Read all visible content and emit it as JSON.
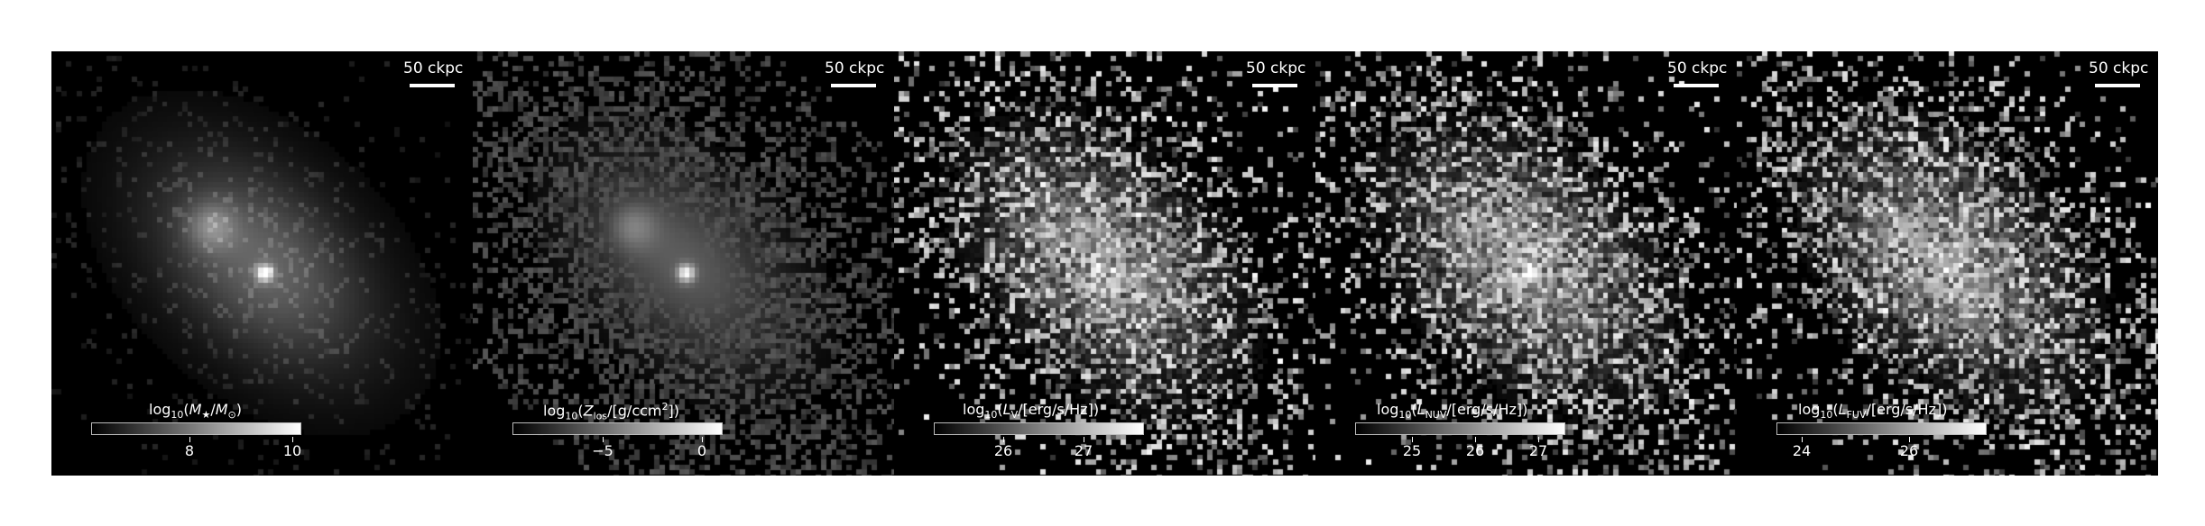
{
  "panels": [
    {
      "scalebar": "50 ckpc",
      "quantity": "M★/M⊙",
      "colorbar_label": "log10(M★/M⊙)",
      "ticks": [
        {
          "label": "8",
          "frac": 0.47
        },
        {
          "label": "10",
          "frac": 0.96
        }
      ],
      "noise": 0.55,
      "peak_brightness": 1.0
    },
    {
      "scalebar": "50 ckpc",
      "quantity": "Z_los/[g/ccm^2]",
      "colorbar_label": "log10(Zlos/[g/ccm2])",
      "ticks": [
        {
          "label": "−5",
          "frac": 0.43
        },
        {
          "label": "0",
          "frac": 0.9
        }
      ],
      "noise": 0.8,
      "peak_brightness": 0.95
    },
    {
      "scalebar": "50 ckpc",
      "quantity": "L_V/[erg/s/Hz]",
      "colorbar_label": "log10(LV/[erg/s/Hz])",
      "ticks": [
        {
          "label": "26",
          "frac": 0.33
        },
        {
          "label": "27",
          "frac": 0.71
        }
      ],
      "noise": 0.95,
      "peak_brightness": 1.0
    },
    {
      "scalebar": "50 ckpc",
      "quantity": "L_NUV/[erg/s/Hz]",
      "colorbar_label": "log10(LNUV/[erg/s/Hz])",
      "ticks": [
        {
          "label": "25",
          "frac": 0.27
        },
        {
          "label": "26",
          "frac": 0.57
        },
        {
          "label": "27",
          "frac": 0.87
        }
      ],
      "noise": 1.0,
      "peak_brightness": 1.0
    },
    {
      "scalebar": "50 ckpc",
      "quantity": "L_FUV/[erg/s/Hz]",
      "colorbar_label": "log10(LFUV/[erg/s/Hz])",
      "ticks": [
        {
          "label": "24",
          "frac": 0.12
        },
        {
          "label": "26",
          "frac": 0.63
        }
      ],
      "noise": 1.0,
      "peak_brightness": 1.0
    }
  ]
}
